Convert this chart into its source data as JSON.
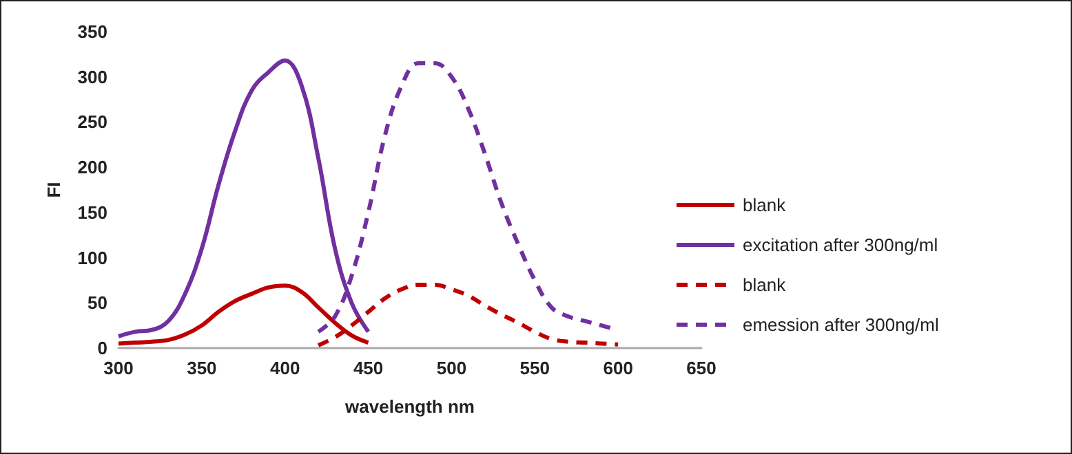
{
  "chart_data": {
    "type": "line",
    "xlabel": "wavelength nm",
    "ylabel": "FI",
    "xlim": [
      300,
      650
    ],
    "xticks": [
      300,
      350,
      400,
      450,
      500,
      550,
      600,
      650
    ],
    "ylim": [
      0,
      350
    ],
    "yticks": [
      0,
      50,
      100,
      150,
      200,
      250,
      300,
      350
    ],
    "grid": false,
    "legend": "right",
    "marker": "none",
    "series": [
      {
        "name": "blank",
        "color": "#c00000",
        "line_style": "solid",
        "x": [
          300,
          310,
          320,
          330,
          340,
          350,
          360,
          370,
          380,
          390,
          400,
          410,
          420,
          430,
          440,
          450
        ],
        "values": [
          5,
          6,
          7,
          9,
          15,
          25,
          40,
          52,
          60,
          67,
          69,
          62,
          45,
          28,
          14,
          6
        ]
      },
      {
        "name": "excitation after 300ng/ml",
        "color": "#7030a0",
        "line_style": "solid",
        "x": [
          300,
          310,
          320,
          330,
          340,
          350,
          360,
          370,
          380,
          390,
          400,
          410,
          420,
          430,
          440,
          450
        ],
        "values": [
          13,
          18,
          20,
          30,
          60,
          110,
          180,
          240,
          285,
          305,
          318,
          290,
          210,
          110,
          50,
          18
        ]
      },
      {
        "name": "blank",
        "color": "#c00000",
        "line_style": "dashed",
        "x": [
          420,
          430,
          440,
          450,
          460,
          470,
          480,
          490,
          500,
          510,
          520,
          530,
          540,
          550,
          560,
          570,
          580,
          590,
          600
        ],
        "values": [
          3,
          12,
          25,
          40,
          55,
          65,
          70,
          70,
          65,
          58,
          47,
          37,
          28,
          18,
          10,
          7,
          6,
          5,
          4
        ]
      },
      {
        "name": "emession after 300ng/ml",
        "color": "#7030a0",
        "line_style": "dashed",
        "x": [
          420,
          430,
          440,
          450,
          460,
          470,
          480,
          490,
          500,
          510,
          520,
          530,
          540,
          550,
          560,
          570,
          580,
          590,
          600
        ],
        "values": [
          18,
          35,
          80,
          150,
          235,
          290,
          315,
          315,
          300,
          265,
          215,
          160,
          115,
          75,
          45,
          35,
          30,
          25,
          20
        ]
      }
    ]
  }
}
